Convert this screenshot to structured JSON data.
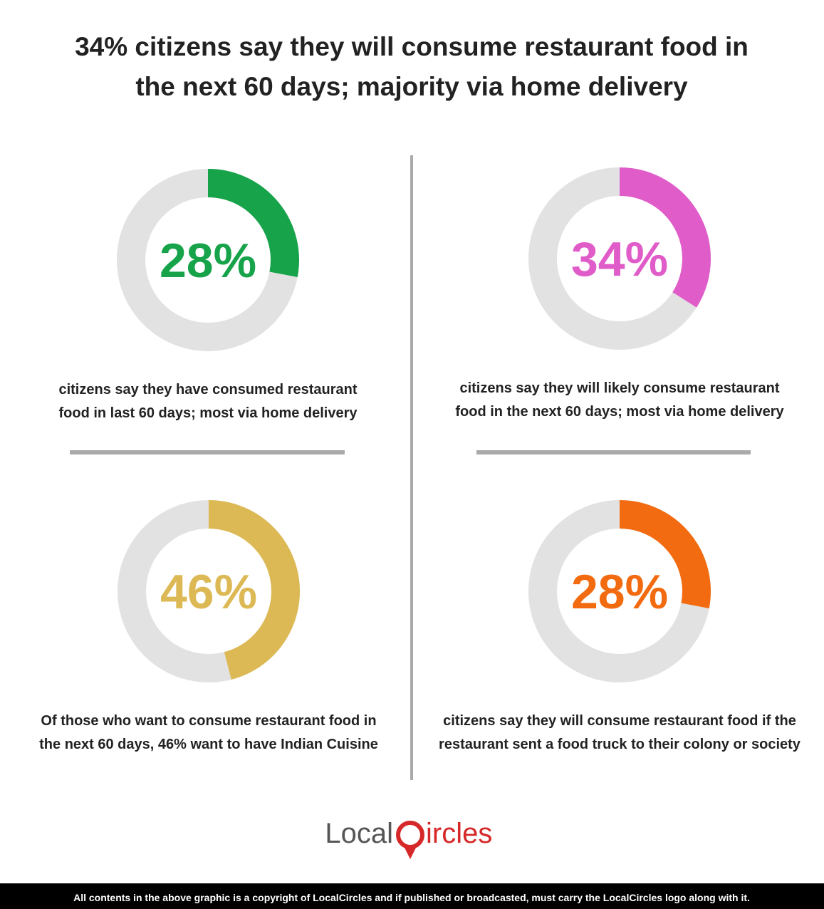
{
  "title": [
    "34% citizens say they will consume restaurant food in",
    "the next 60 days; majority via home delivery"
  ],
  "chart_data": [
    {
      "type": "donut",
      "values": [
        28
      ],
      "value_labels": [
        "28%"
      ],
      "color": "#16a34a",
      "caption": [
        "citizens say they have consumed restaurant",
        "food in last 60 days; most via home delivery"
      ]
    },
    {
      "type": "donut",
      "values": [
        34
      ],
      "value_labels": [
        "34%"
      ],
      "color": "#e05cc9",
      "caption": [
        "citizens say they will likely consume restaurant",
        "food in the next 60 days; most via home delivery"
      ]
    },
    {
      "type": "donut",
      "values": [
        46
      ],
      "value_labels": [
        "46%"
      ],
      "color": "#ddb955",
      "caption": [
        "Of those who want to consume restaurant food in",
        "the next 60 days, 46% want to have Indian Cuisine"
      ]
    },
    {
      "type": "donut",
      "values": [
        28
      ],
      "value_labels": [
        "28%"
      ],
      "color": "#f26b10",
      "caption": [
        "citizens say they will consume restaurant food if the",
        "restaurant sent a food truck to their colony or society"
      ]
    }
  ],
  "logo": {
    "left": "Local",
    "right": "ircles"
  },
  "footer": "All contents in the above graphic is a copyright of LocalCircles and if published or broadcasted, must carry the LocalCircles logo along with it."
}
